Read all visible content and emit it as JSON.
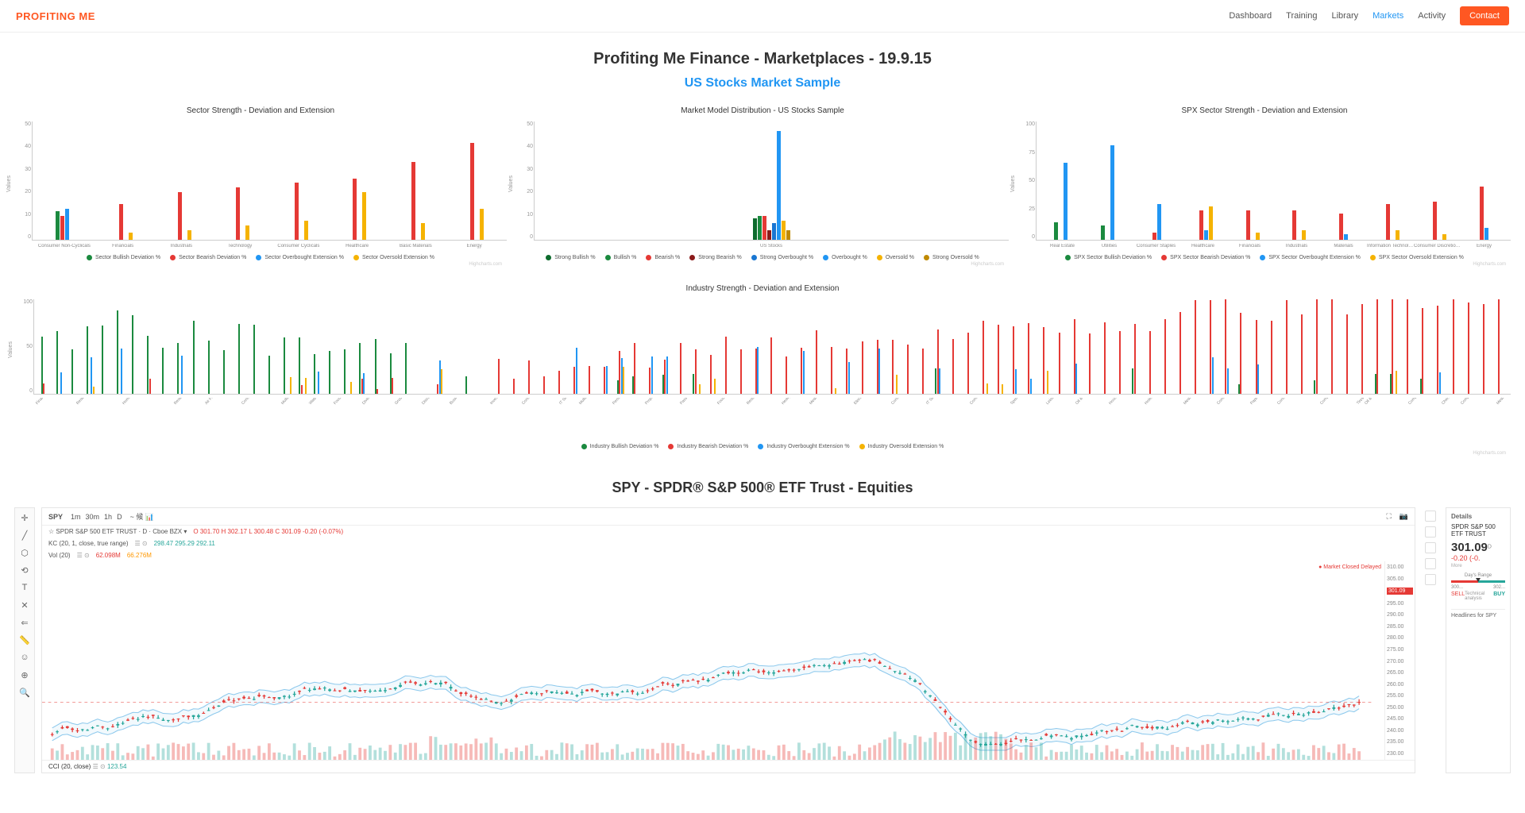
{
  "header": {
    "logo": "PROFITING ME",
    "nav": [
      "Dashboard",
      "Training",
      "Library",
      "Markets",
      "Activity"
    ],
    "active_nav": "Markets",
    "contact_label": "Contact"
  },
  "page_title": "Profiting Me Finance - Marketplaces - 19.9.15",
  "subtitle": "US Stocks Market Sample",
  "colors": {
    "bullish": "#1b8a3f",
    "bearish": "#e53935",
    "strong_bearish": "#8b1a1a",
    "overbought": "#2196f3",
    "oversold": "#f5b301",
    "strong_oversold": "#c08a00"
  },
  "chart1": {
    "title": "Sector Strength - Deviation and Extension",
    "ylabel": "Values",
    "ymax": 50,
    "ystep": 10,
    "categories": [
      "Consumer Non-Cyclicals",
      "Financials",
      "Industrials",
      "Technology",
      "Consumer Cyclicals",
      "Healthcare",
      "Basic Materials",
      "Energy"
    ],
    "series": [
      {
        "name": "Sector Bullish Deviation %",
        "color": "#1b8a3f",
        "values": [
          12,
          0,
          0,
          0,
          0,
          0,
          0,
          0
        ]
      },
      {
        "name": "Sector Bearish Deviation %",
        "color": "#e53935",
        "values": [
          10,
          15,
          20,
          22,
          24,
          26,
          33,
          41
        ]
      },
      {
        "name": "Sector Overbought Extension %",
        "color": "#2196f3",
        "values": [
          13,
          0,
          0,
          0,
          0,
          0,
          0,
          0
        ]
      },
      {
        "name": "Sector Oversold Extension %",
        "color": "#f5b301",
        "values": [
          0,
          3,
          4,
          6,
          8,
          20,
          7,
          13
        ]
      }
    ],
    "credit": "Highcharts.com"
  },
  "chart2": {
    "title": "Market Model Distribution - US Stocks Sample",
    "ylabel": "Values",
    "ymax": 50,
    "ystep": 10,
    "categories": [
      "US Stocks"
    ],
    "series": [
      {
        "name": "Strong Bullish %",
        "color": "#0d6b2d",
        "values": [
          9
        ]
      },
      {
        "name": "Bullish %",
        "color": "#1b8a3f",
        "values": [
          10
        ]
      },
      {
        "name": "Bearish %",
        "color": "#e53935",
        "values": [
          10
        ]
      },
      {
        "name": "Strong Bearish %",
        "color": "#8b1a1a",
        "values": [
          4
        ]
      },
      {
        "name": "Strong Overbought %",
        "color": "#1976d2",
        "values": [
          7
        ]
      },
      {
        "name": "Overbought %",
        "color": "#2196f3",
        "values": [
          46
        ]
      },
      {
        "name": "Oversold %",
        "color": "#f5b301",
        "values": [
          8
        ]
      },
      {
        "name": "Strong Oversold %",
        "color": "#c08a00",
        "values": [
          4
        ]
      }
    ],
    "credit": "Highcharts.com"
  },
  "chart3": {
    "title": "SPX Sector Strength - Deviation and Extension",
    "ylabel": "Values",
    "ymax": 100,
    "ystep": 25,
    "categories": [
      "Real Estate",
      "Utilities",
      "Consumer Staples",
      "Healthcare",
      "Financials",
      "Industrials",
      "Materials",
      "Information Technology",
      "Consumer Discretionary",
      "Energy"
    ],
    "series": [
      {
        "name": "SPX Sector Bullish Deviation %",
        "color": "#1b8a3f",
        "values": [
          15,
          12,
          0,
          0,
          0,
          0,
          0,
          0,
          0,
          0
        ]
      },
      {
        "name": "SPX Sector Bearish Deviation %",
        "color": "#e53935",
        "values": [
          0,
          0,
          6,
          25,
          25,
          25,
          22,
          30,
          32,
          45
        ]
      },
      {
        "name": "SPX Sector Overbought Extension %",
        "color": "#2196f3",
        "values": [
          65,
          80,
          30,
          8,
          0,
          0,
          5,
          0,
          0,
          10
        ]
      },
      {
        "name": "SPX Sector Oversold Extension %",
        "color": "#f5b301",
        "values": [
          0,
          0,
          0,
          28,
          6,
          8,
          0,
          8,
          5,
          0
        ]
      }
    ],
    "credit": "Highcharts.com"
  },
  "chart4": {
    "title": "Industry Strength - Deviation and Extension",
    "ylabel": "Values",
    "ymax": 100,
    "ystep": 50,
    "legend": [
      {
        "name": "Industry Bullish Deviation %",
        "color": "#1b8a3f"
      },
      {
        "name": "Industry Bearish Deviation %",
        "color": "#e53935"
      },
      {
        "name": "Industry Overbought Extension %",
        "color": "#2196f3"
      },
      {
        "name": "Industry Oversold Extension %",
        "color": "#f5b301"
      }
    ],
    "categories": [
      "Financial & Commodity",
      "Residential & Commercial",
      "Homebuilding & Construction",
      "Residential REITs",
      "Air Freight & Courier",
      "Construction Materials",
      "Multiline Utilities",
      "Water Utilities",
      "Food & Tobacco",
      "Diversified Trading",
      "Ground Freight",
      "Discount Stores",
      "Business Support Serv",
      "Investment Trusts",
      "Consumer Publishing",
      "IT Services",
      "Multiline Insurance",
      "Personal Products",
      "Property & Casualty",
      "Passenger Transport",
      "Food Processing",
      "Restaurants & Bars",
      "Heavy Electrical",
      "Medical Equipment Supp",
      "Electronic Equipment",
      "Consumer Services",
      "IT Services & Consulting",
      "Communications Equip",
      "Specialty Chemicals",
      "Leisure Products",
      "Oil & Gas Refining",
      "Household Products",
      "Hotel & Entertainment",
      "Media & Publishing",
      "Commercial REITs",
      "Paper Products",
      "Construction & Engineer",
      "Computer Hardware",
      "Tires",
      "Oil & Gas Related Equip",
      "Computers Phones",
      "Chemicals",
      "Computer Hardware",
      "Media Diversified",
      "Auto Truck & Motorcycle",
      "Apparel & Footwear",
      "Software",
      "Broadcasting",
      "Real Estate Services",
      "Specialty Retail",
      "Environmental Services",
      "Drug Retailers",
      "Advertising",
      "Biotechnology",
      "Semiconductors",
      "General Retailers",
      "Investment Banking",
      "Heavy Machinery & Vehicles",
      "Healthcare Equipment",
      "Machinery",
      "Automotive",
      "Aerospace & Defense",
      "Industrial Conglomerates",
      "Integrated Telecom",
      "Commercial Printing",
      "Textiles & Apparel",
      "Containers & Packaging",
      "Pharmaceuticals",
      "Renewable Energy",
      "Healthcare Providers",
      "Household Goods",
      "Semiconductors Equip",
      "Office Equipment",
      "Metals & Mining",
      "Electrical Components",
      "Auto Parts",
      "Employment Services",
      "Agricultural Chemicals",
      "Integrated Oil & Gas",
      "Aluminum",
      "Electric Utilities",
      "Oil & Gas Exploration",
      "Banks",
      "Coal",
      "Oil Equipment & Serv",
      "Precious Metals",
      "Gas Utilities",
      "Forestry",
      "Oil Gas Drilling",
      "Paper Packaging",
      "Iron & Steel",
      "Gold",
      "Toys",
      "Mortgage",
      "Textiles & Leather",
      "Iron & Steel",
      "Marine"
    ],
    "credit": "Highcharts.com"
  },
  "spy_section_title": "SPY - SPDR® S&P 500® ETF Trust - Equities",
  "tv": {
    "symbol": "SPY",
    "timeframes": [
      "1m",
      "30m",
      "1h",
      "D"
    ],
    "icons_top": [
      "~",
      "候",
      "📊"
    ],
    "name_line": "SPDR S&P 500 ETF TRUST · D · Cboe BZX",
    "ohlc": {
      "o": "O 301.70",
      "h": "H 302.17",
      "l": "L 300.48",
      "c": "C 301.09",
      "chg": "-0.20 (-0.07%)"
    },
    "kc_line": "KC (20, 1, close, true range)",
    "kc_vals": "298.47 295.29 292.11",
    "vol_line": "Vol (20)",
    "vol_vals": "62.098M",
    "vol_ma": "66.276M",
    "status": "● Market Closed  Delayed",
    "price_scale": [
      "310.00",
      "305.00",
      "301.09",
      "295.00",
      "290.00",
      "285.00",
      "280.00",
      "275.00",
      "270.00",
      "265.00",
      "260.00",
      "255.00",
      "250.00",
      "245.00",
      "240.00",
      "235.00",
      "230.00"
    ],
    "cci": {
      "label": "CCI (20, close)",
      "v1": "123.54",
      "v2": ""
    },
    "tools": [
      "✛",
      "╱",
      "⬡",
      "⟲",
      "T",
      "✕",
      "⇐",
      "📏",
      "☺",
      "⊕",
      "🔍"
    ],
    "right_icons": 5,
    "side": {
      "details_label": "Details",
      "name": "SPDR S&P 500 ETF TRUST",
      "price": "301.09",
      "sup": "D",
      "change": "-0.20 (-0.",
      "range_label": "Day's Range",
      "range_lo": "300...",
      "range_hi": "302...",
      "sell": "SELL",
      "buy": "BUY",
      "ta": "Technical analysis",
      "headlines": "Headlines for SPY"
    }
  }
}
